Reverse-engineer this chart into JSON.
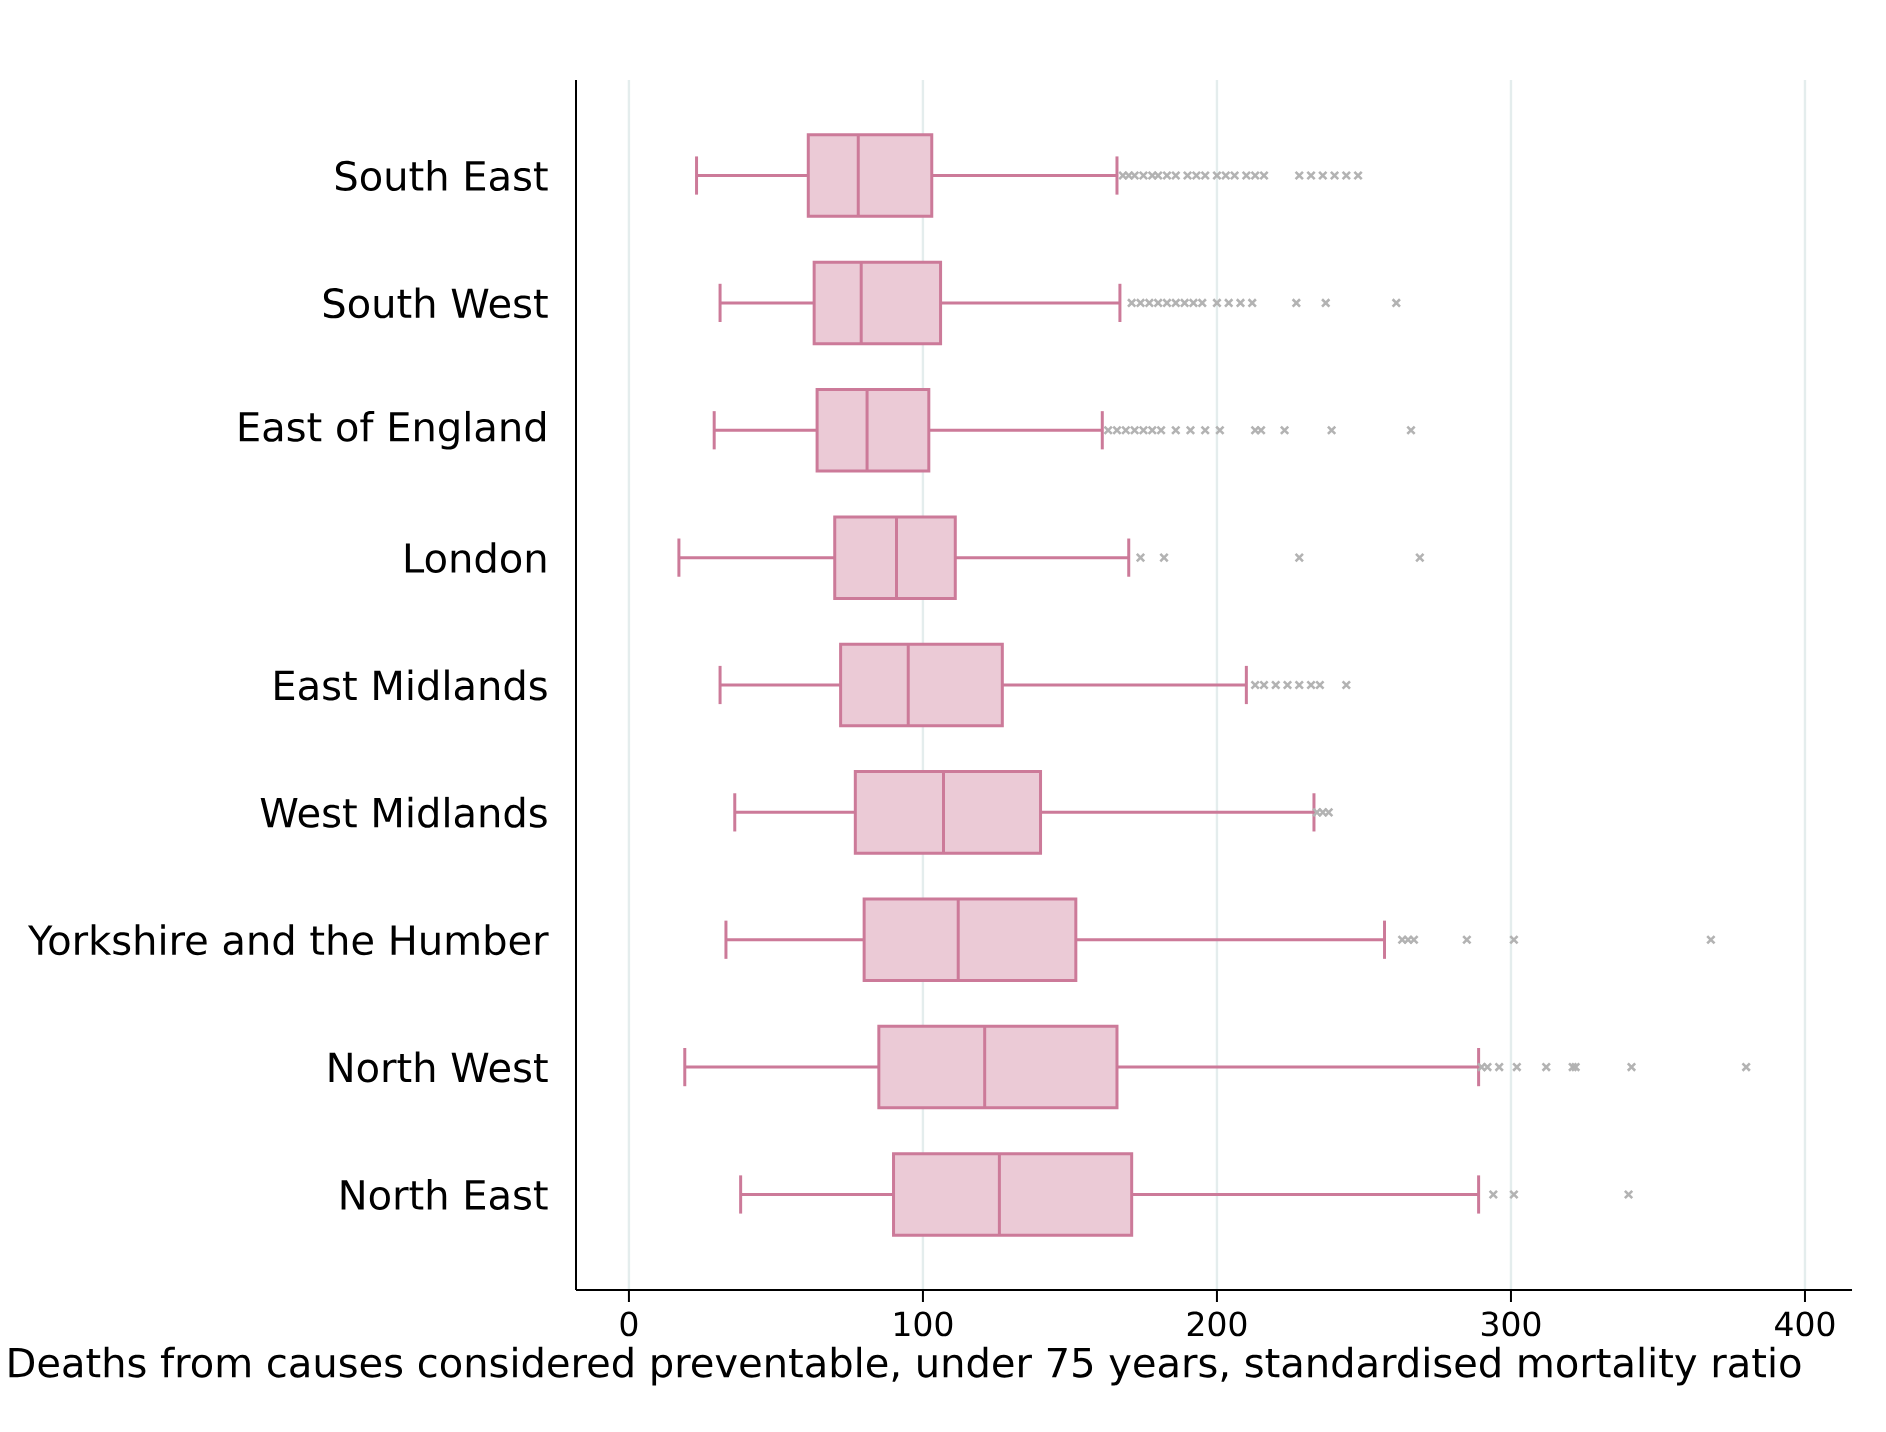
{
  "chart_data": {
    "type": "box",
    "orientation": "horizontal",
    "xlabel": "Deaths from causes considered preventable, under 75 years, standardised mortality ratio",
    "categories": [
      "South East",
      "South West",
      "East of England",
      "London",
      "East Midlands",
      "West Midlands",
      "Yorkshire and the Humber",
      "North West",
      "North East"
    ],
    "color": "#cc7a99",
    "xlim": [
      -18,
      416
    ],
    "xticks": [
      0,
      100,
      200,
      300,
      400
    ],
    "grid": "x",
    "boxes": [
      {
        "low": 23,
        "q1": 61,
        "median": 78,
        "q3": 103,
        "high": 166,
        "outliers": [
          168,
          170,
          172,
          175,
          178,
          180,
          183,
          186,
          190,
          193,
          196,
          200,
          203,
          206,
          210,
          213,
          216,
          228,
          232,
          236,
          240,
          244,
          248
        ]
      },
      {
        "low": 31,
        "q1": 63,
        "median": 79,
        "q3": 106,
        "high": 167,
        "outliers": [
          171,
          174,
          177,
          180,
          183,
          186,
          189,
          192,
          195,
          200,
          204,
          208,
          212,
          227,
          237,
          261
        ]
      },
      {
        "low": 29,
        "q1": 64,
        "median": 81,
        "q3": 102,
        "high": 161,
        "outliers": [
          163,
          166,
          169,
          172,
          175,
          178,
          181,
          186,
          191,
          196,
          201,
          213,
          215,
          223,
          239,
          266
        ]
      },
      {
        "low": 17,
        "q1": 70,
        "median": 91,
        "q3": 111,
        "high": 170,
        "outliers": [
          174,
          182,
          228,
          269
        ]
      },
      {
        "low": 31,
        "q1": 72,
        "median": 95,
        "q3": 127,
        "high": 210,
        "outliers": [
          213,
          216,
          220,
          224,
          228,
          232,
          235,
          244
        ]
      },
      {
        "low": 36,
        "q1": 77,
        "median": 107,
        "q3": 140,
        "high": 233,
        "outliers": [
          234,
          236,
          238
        ]
      },
      {
        "low": 33,
        "q1": 80,
        "median": 112,
        "q3": 152,
        "high": 257,
        "outliers": [
          263,
          265,
          267,
          285,
          301,
          368
        ]
      },
      {
        "low": 19,
        "q1": 85,
        "median": 121,
        "q3": 166,
        "high": 289,
        "outliers": [
          290,
          292,
          296,
          302,
          312,
          321,
          322,
          341,
          380
        ]
      },
      {
        "low": 38,
        "q1": 90,
        "median": 126,
        "q3": 171,
        "high": 289,
        "outliers": [
          294,
          301,
          340
        ]
      }
    ]
  }
}
